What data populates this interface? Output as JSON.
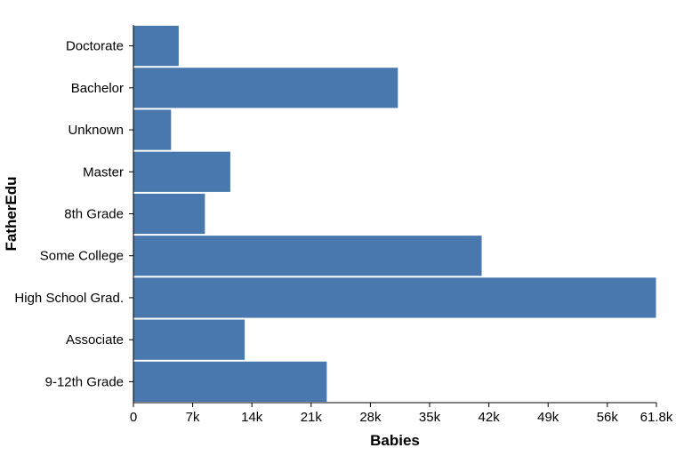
{
  "chart_data": {
    "type": "bar",
    "orientation": "horizontal",
    "xlabel": "Babies",
    "ylabel": "FatherEdu",
    "categories": [
      "Doctorate",
      "Bachelor",
      "Unknown",
      "Master",
      "8th Grade",
      "Some College",
      "High School Grad.",
      "Associate",
      "9-12th Grade"
    ],
    "values": [
      5400,
      31300,
      4500,
      11500,
      8500,
      41200,
      61800,
      13200,
      22900
    ],
    "xlim": [
      0,
      61800
    ],
    "x_ticks": [
      0,
      7000,
      14000,
      21000,
      28000,
      35000,
      42000,
      49000,
      56000,
      61800
    ],
    "x_tick_labels": [
      "0",
      "7k",
      "14k",
      "21k",
      "28k",
      "35k",
      "42k",
      "49k",
      "56k",
      "61.8k"
    ],
    "grid": false,
    "legend": "none",
    "bar_color": "#4878ad"
  }
}
